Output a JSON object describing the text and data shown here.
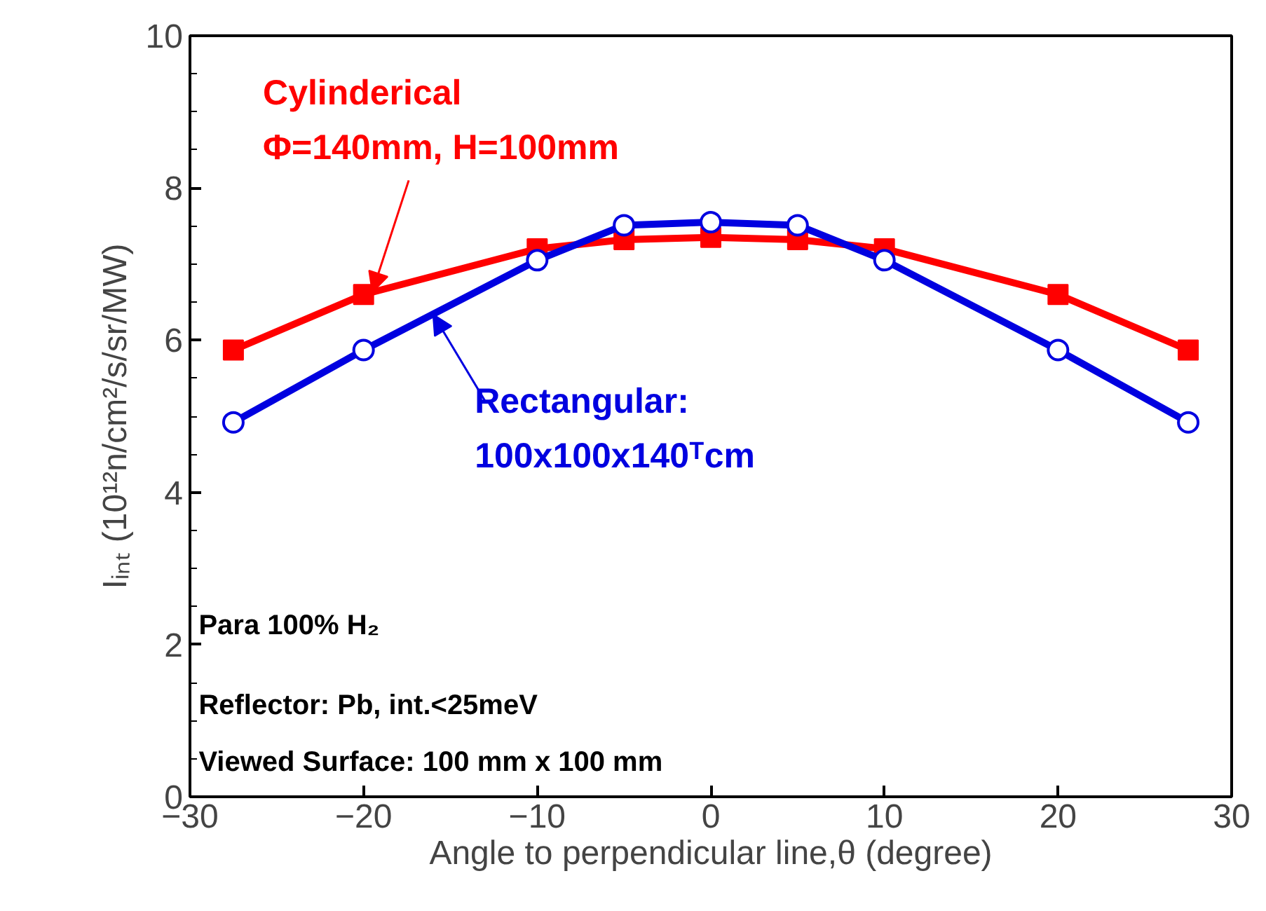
{
  "chart_data": {
    "type": "line",
    "xlabel": "Angle to perpendicular line,θ (degree)",
    "ylabel": "Iᵢₙₜ (10¹²n/cm²/s/sr/MW)",
    "xlim": [
      -30,
      30
    ],
    "xticks": [
      -30,
      -20,
      -10,
      0,
      10,
      20,
      30
    ],
    "ylim": [
      0,
      10
    ],
    "yticks": [
      0,
      2,
      4,
      6,
      8,
      10
    ],
    "grid": false,
    "line_style": "solid",
    "series": [
      {
        "color": "#ff0000",
        "marker": "square",
        "x": [
          -27.5,
          -20,
          -10,
          -5,
          0,
          5,
          10,
          20,
          27.5
        ],
        "values": [
          5.87,
          6.6,
          7.2,
          7.32,
          7.35,
          7.32,
          7.2,
          6.6,
          5.87
        ]
      },
      {
        "color": "#0000e0",
        "marker": "circle",
        "x": [
          -27.5,
          -20,
          -10,
          -5,
          0,
          5,
          10,
          20,
          27.5
        ],
        "values": [
          4.92,
          5.87,
          7.05,
          7.51,
          7.55,
          7.51,
          7.05,
          5.87,
          4.92
        ]
      }
    ],
    "annotations": [
      {
        "text": "Cylinderical\nΦ=140mm, H=100mm",
        "x": -19.5,
        "y": 6.63
      },
      {
        "text": "Rectangular:\n100x100x140ᵀcm",
        "x": -16,
        "y": 6.34
      },
      "Para 100% H₂",
      "Reflector: Pb, int.<25meV",
      "Viewed Surface: 100 mm x 100 mm"
    ]
  }
}
